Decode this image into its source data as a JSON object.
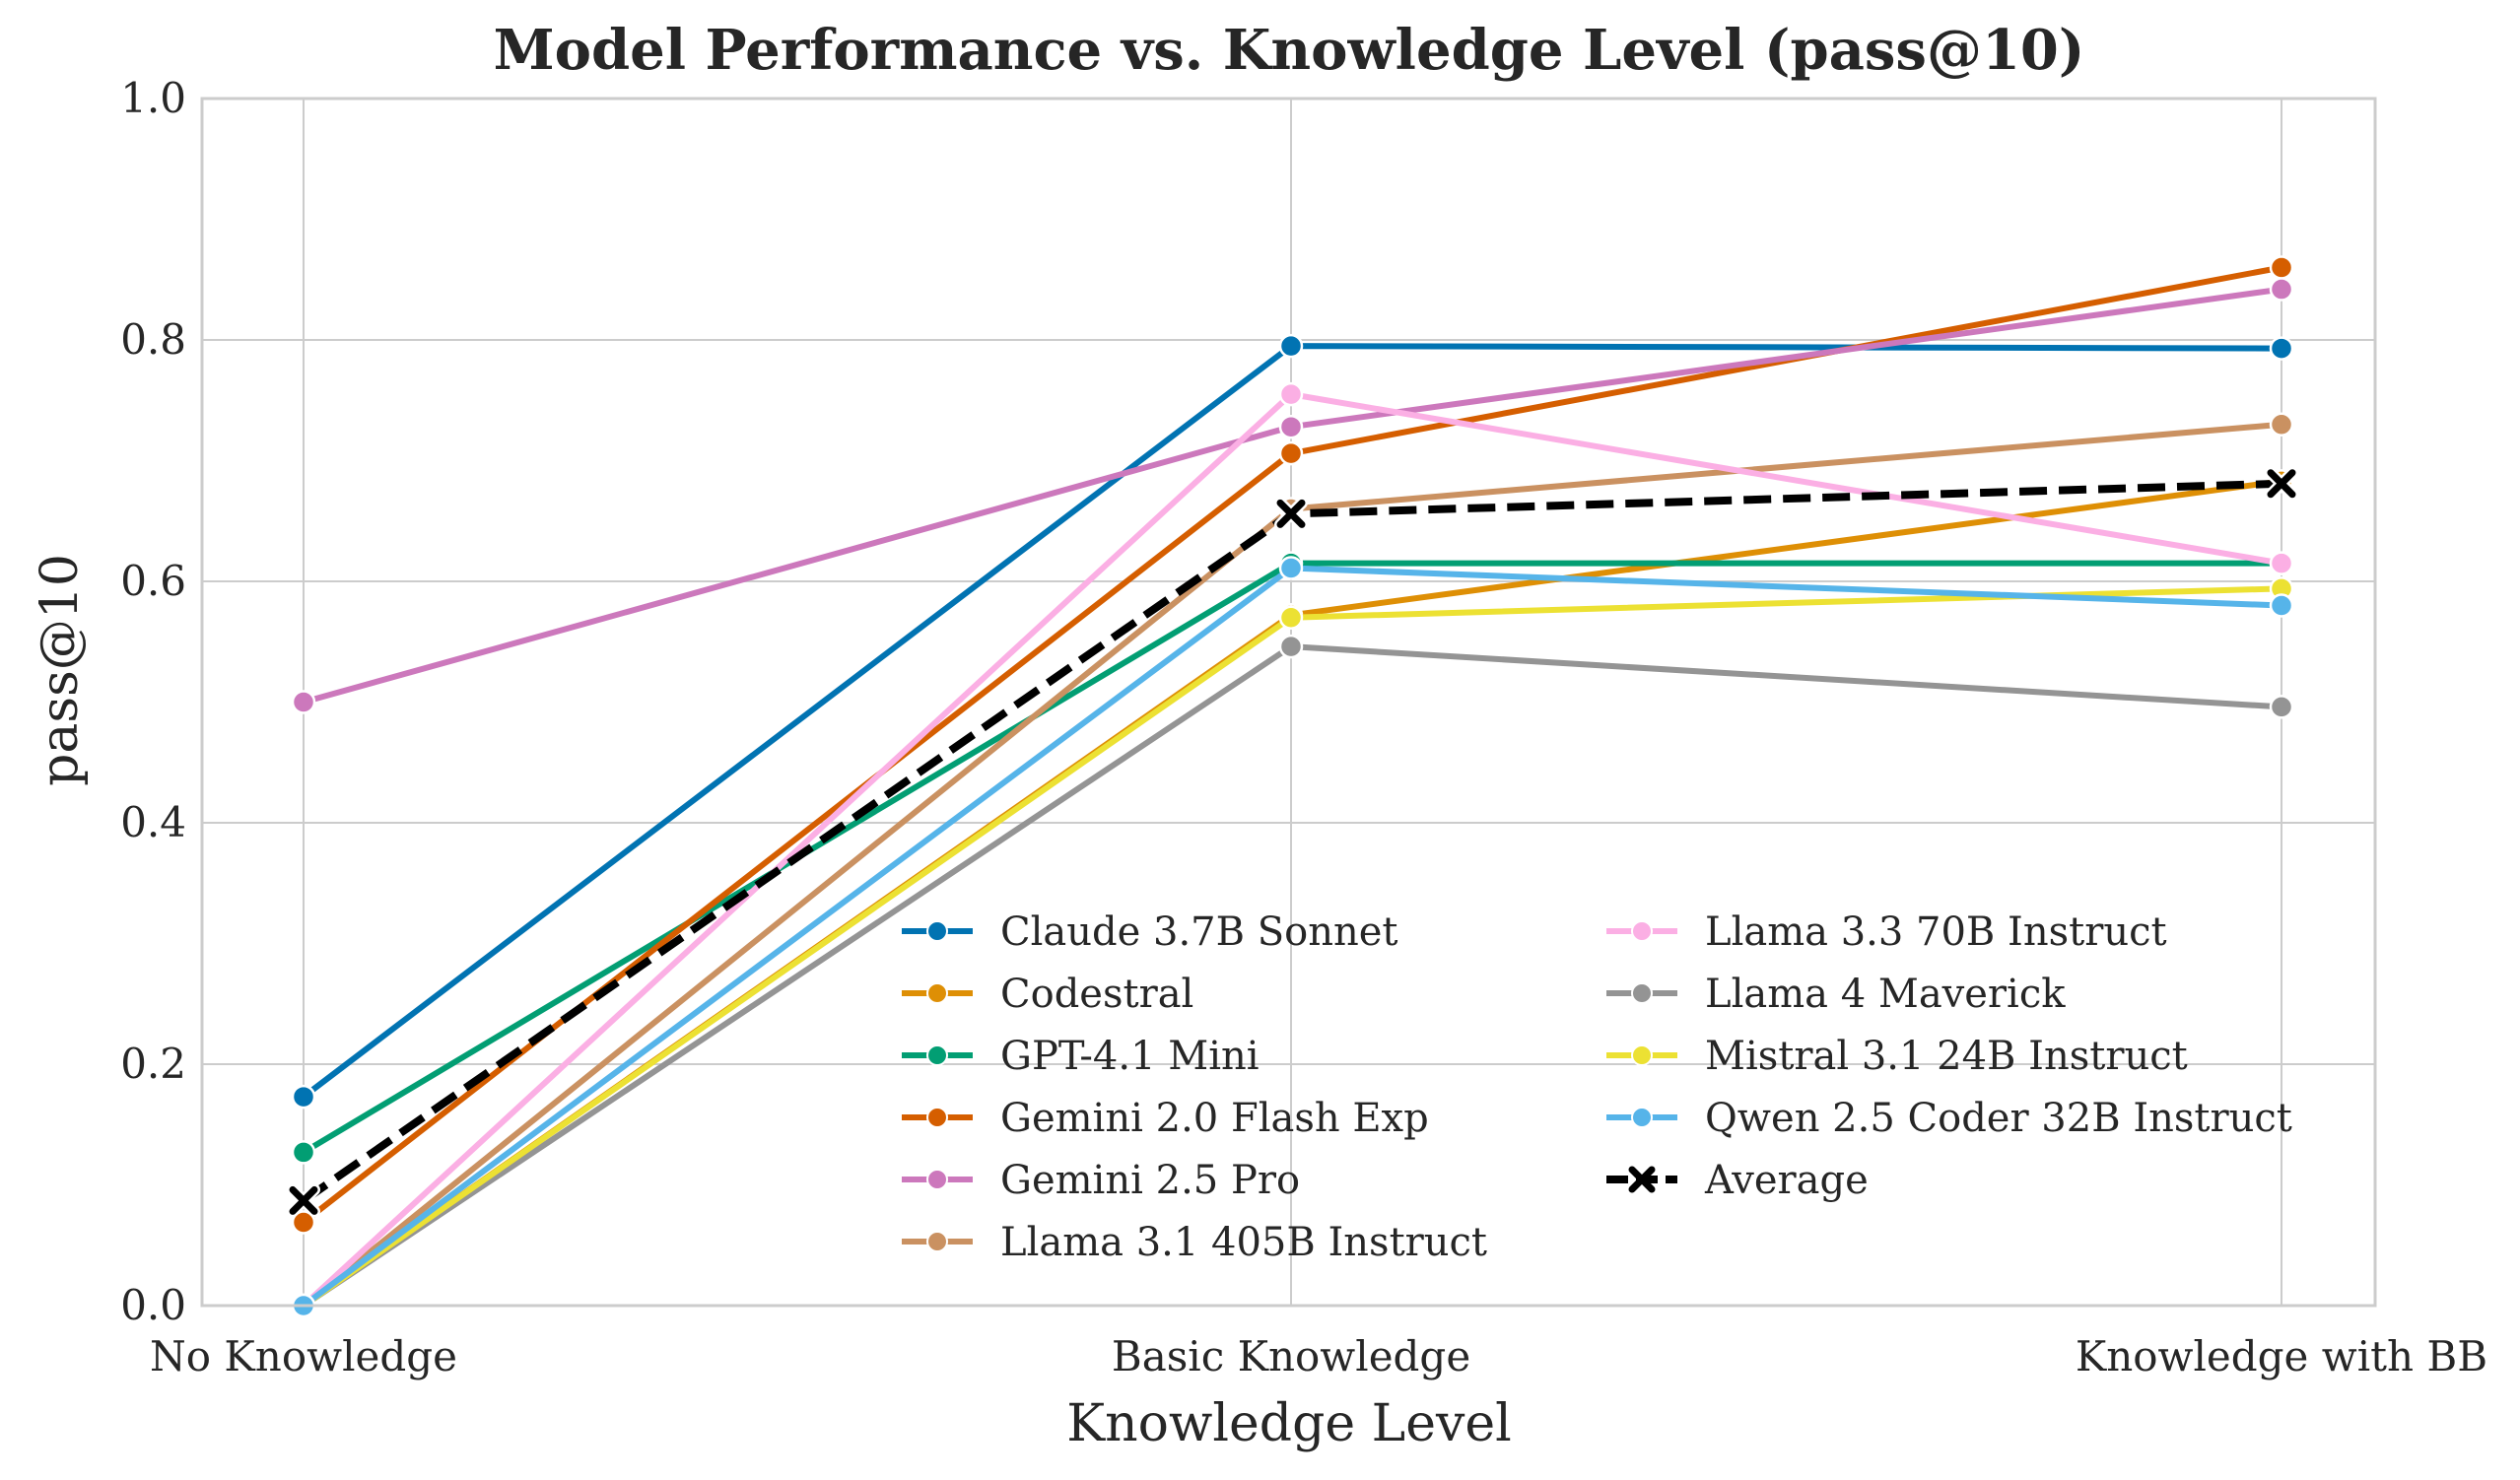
{
  "chart_data": {
    "type": "line",
    "title": "Model Performance vs. Knowledge Level (pass@10)",
    "xlabel": "Knowledge Level",
    "ylabel": "pass@10",
    "categories": [
      "No Knowledge",
      "Basic Knowledge",
      "Knowledge with BB"
    ],
    "ylim": [
      0,
      1.0
    ],
    "yticks": [
      "0.0",
      "0.2",
      "0.4",
      "0.6",
      "0.8",
      "1.0"
    ],
    "grid": true,
    "legend_position": "lower-right",
    "series": [
      {
        "name": "Claude 3.7B Sonnet",
        "color": "#0173b2",
        "marker": "circle",
        "values": [
          0.173,
          0.795,
          0.793
        ]
      },
      {
        "name": "Codestral",
        "color": "#de8f05",
        "marker": "circle",
        "values": [
          0.0,
          0.572,
          0.683
        ]
      },
      {
        "name": "GPT-4.1 Mini",
        "color": "#029e73",
        "marker": "circle",
        "values": [
          0.127,
          0.615,
          0.615
        ]
      },
      {
        "name": "Gemini 2.0 Flash Exp",
        "color": "#d55e00",
        "marker": "circle",
        "values": [
          0.069,
          0.706,
          0.86
        ]
      },
      {
        "name": "Gemini 2.5 Pro",
        "color": "#cc78bc",
        "marker": "circle",
        "values": [
          0.5,
          0.728,
          0.842
        ]
      },
      {
        "name": "Llama 3.1 405B Instruct",
        "color": "#ca9161",
        "marker": "circle",
        "values": [
          0.0,
          0.66,
          0.73
        ]
      },
      {
        "name": "Llama 3.3 70B Instruct",
        "color": "#fbafe4",
        "marker": "circle",
        "values": [
          0.0,
          0.755,
          0.615
        ]
      },
      {
        "name": "Llama 4 Maverick",
        "color": "#949494",
        "marker": "circle",
        "values": [
          0.0,
          0.546,
          0.496
        ]
      },
      {
        "name": "Mistral 3.1 24B Instruct",
        "color": "#ece133",
        "marker": "circle",
        "values": [
          0.0,
          0.57,
          0.594
        ]
      },
      {
        "name": "Qwen 2.5 Coder 32B Instruct",
        "color": "#56b4e9",
        "marker": "circle",
        "values": [
          0.0,
          0.611,
          0.58
        ]
      },
      {
        "name": "Average",
        "color": "#000000",
        "marker": "x",
        "dashed": true,
        "values": [
          0.087,
          0.656,
          0.681
        ]
      }
    ]
  }
}
